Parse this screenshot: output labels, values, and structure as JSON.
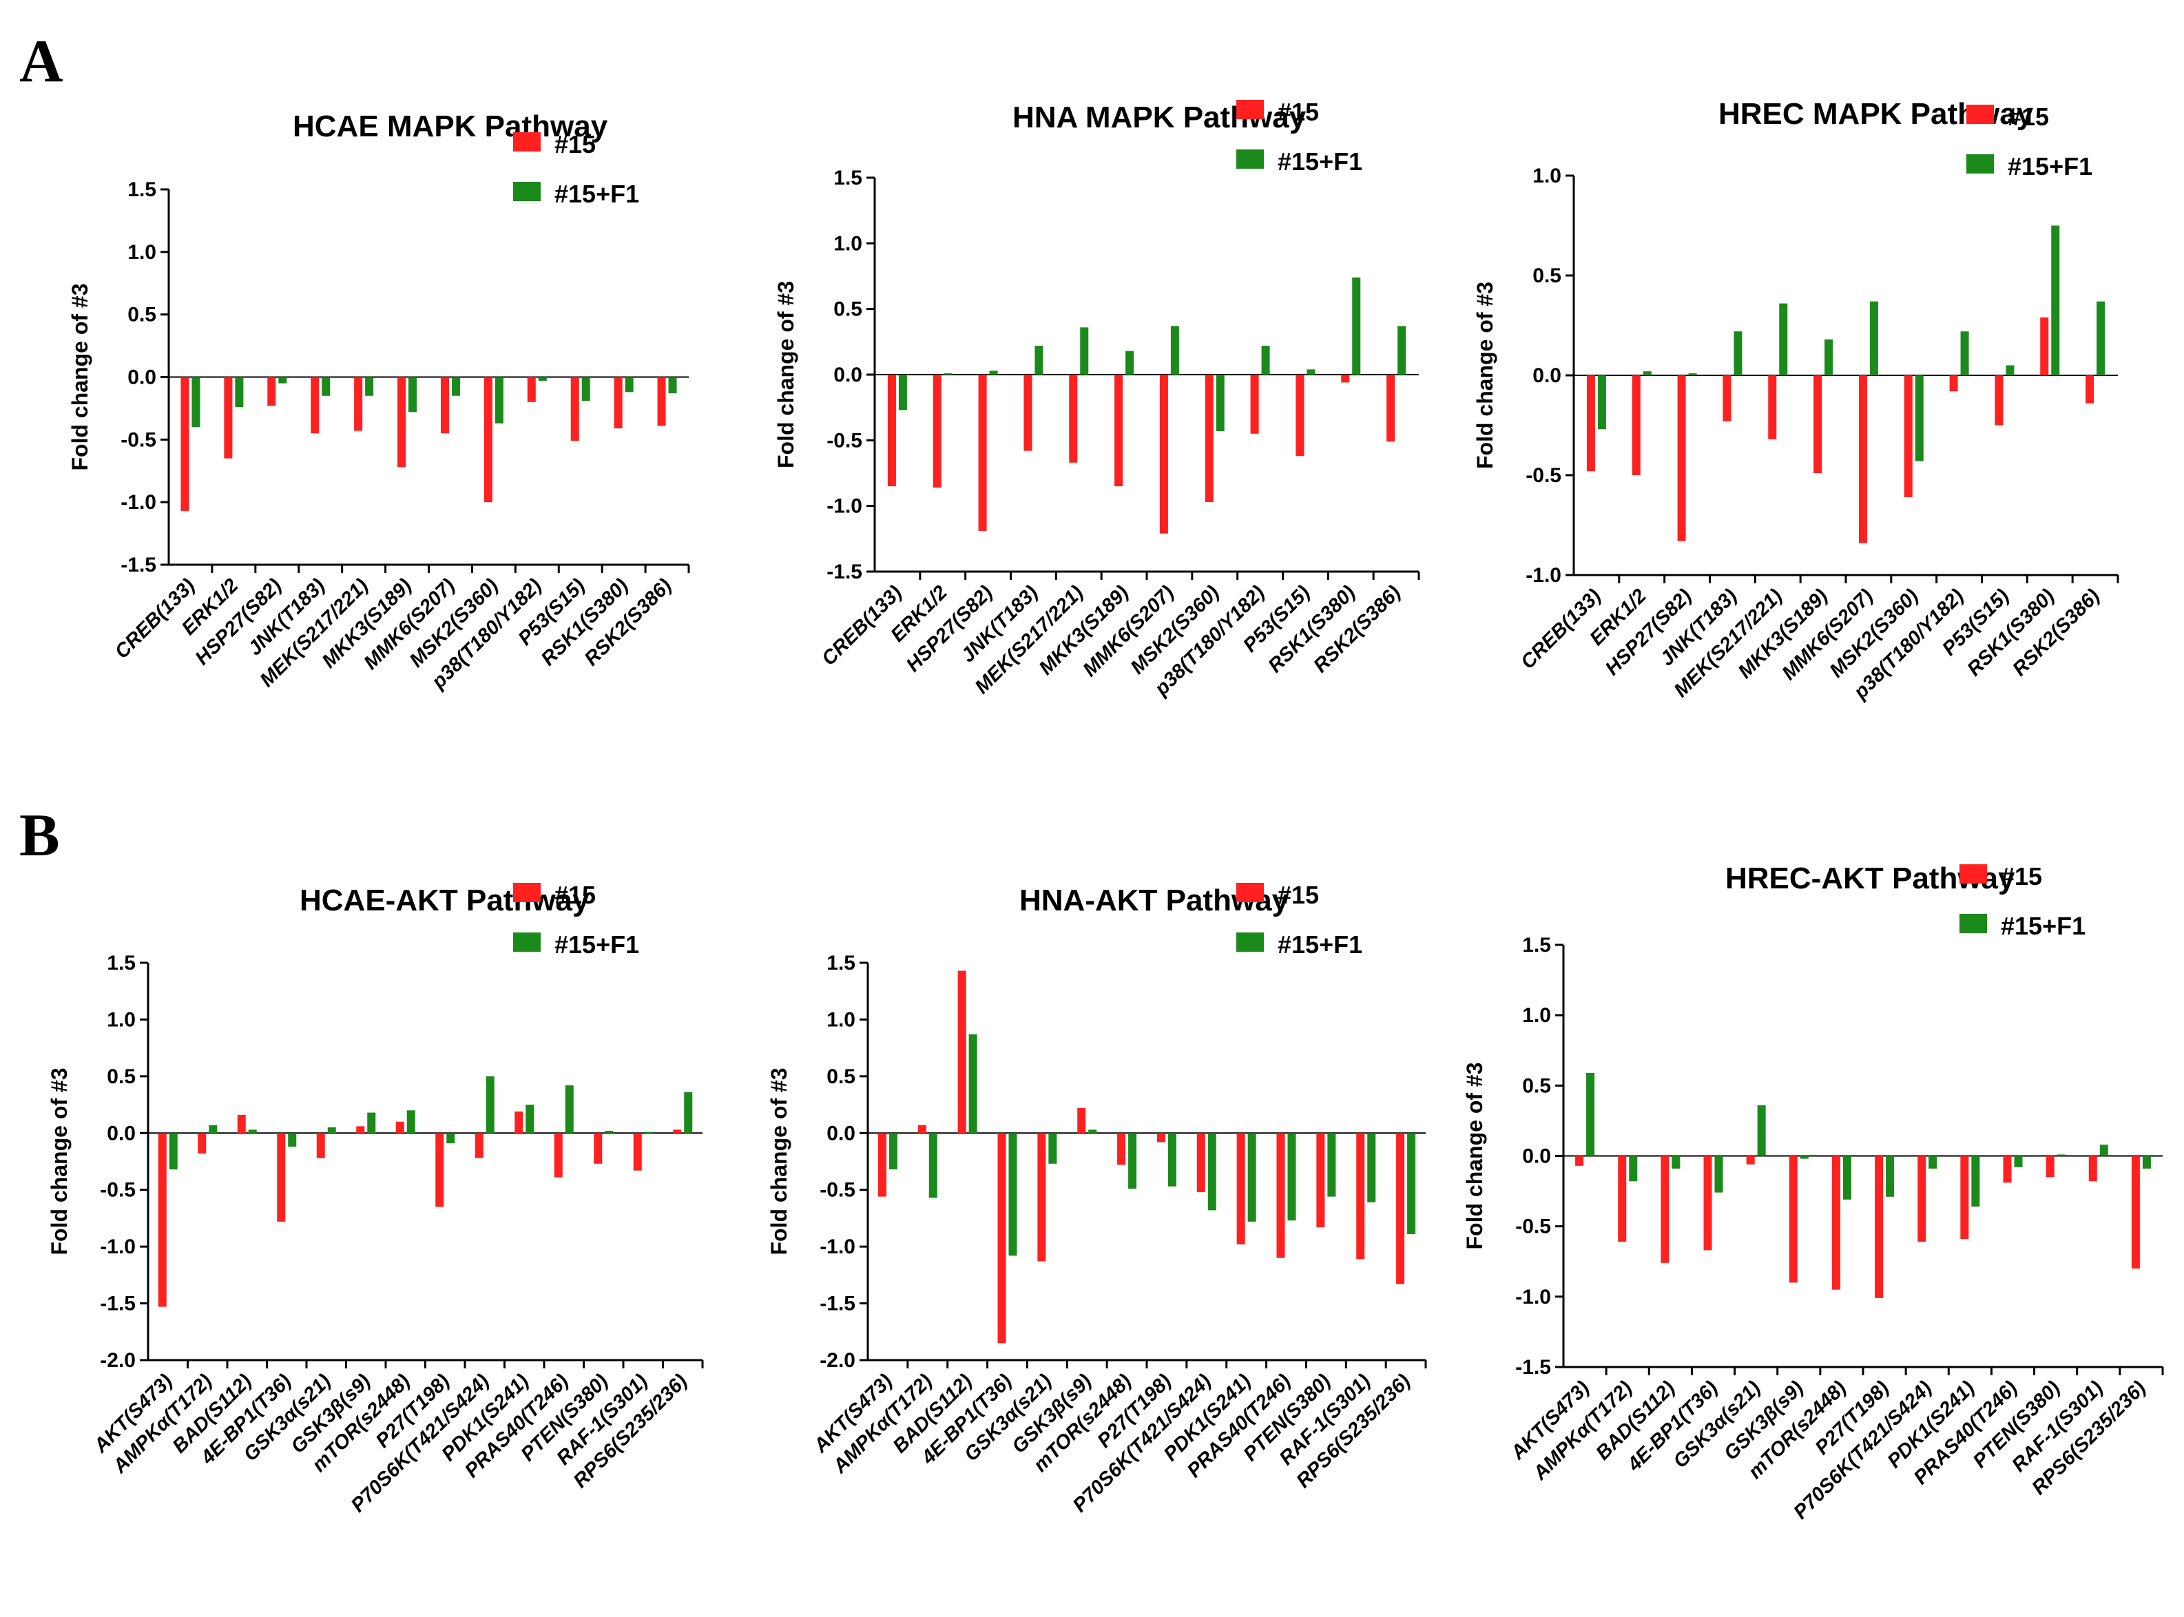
{
  "colors": {
    "s15": "#ff2020",
    "s15f1": "#1a8a1a"
  },
  "panel_labels": {
    "a": "A",
    "b": "B"
  },
  "chart_data": [
    {
      "type": "bar",
      "title": "HCAE MAPK Pathway",
      "ylabel": "Fold change of #3",
      "ylim": [
        -1.5,
        1.5
      ],
      "yticks": [
        "-1.5",
        "-1.0",
        "-0.5",
        "0.0",
        "0.5",
        "1.0",
        "1.5"
      ],
      "categories": [
        "CREB(133)",
        "ERK1/2",
        "HSP27(S82)",
        "JNK(T183)",
        "MEK(S217/221)",
        "MKK3(S189)",
        "MMK6(S207)",
        "MSK2(S360)",
        "p38(T180/Y182)",
        "P53(S15)",
        "RSK1(S380)",
        "RSK2(S386)"
      ],
      "series": [
        {
          "name": "#15",
          "values": [
            -1.07,
            -0.65,
            -0.23,
            -0.45,
            -0.43,
            -0.72,
            -0.45,
            -1.0,
            -0.2,
            -0.51,
            -0.41,
            -0.39
          ]
        },
        {
          "name": "#15+F1",
          "values": [
            -0.4,
            -0.24,
            -0.05,
            -0.15,
            -0.15,
            -0.28,
            -0.15,
            -0.37,
            -0.03,
            -0.19,
            -0.12,
            -0.13
          ]
        }
      ]
    },
    {
      "type": "bar",
      "title": "HNA MAPK Pathway",
      "ylabel": "Fold change of #3",
      "ylim": [
        -1.5,
        1.5
      ],
      "yticks": [
        "-1.5",
        "-1.0",
        "-0.5",
        "0.0",
        "0.5",
        "1.0",
        "1.5"
      ],
      "categories": [
        "CREB(133)",
        "ERK1/2",
        "HSP27(S82)",
        "JNK(T183)",
        "MEK(S217/221)",
        "MKK3(S189)",
        "MMK6(S207)",
        "MSK2(S360)",
        "p38(T180/Y182)",
        "P53(S15)",
        "RSK1(S380)",
        "RSK2(S386)"
      ],
      "series": [
        {
          "name": "#15",
          "values": [
            -0.85,
            -0.86,
            -1.19,
            -0.58,
            -0.67,
            -0.85,
            -1.21,
            -0.97,
            -0.45,
            -0.62,
            -0.06,
            -0.51
          ]
        },
        {
          "name": "#15+F1",
          "values": [
            -0.27,
            0.01,
            0.03,
            0.22,
            0.36,
            0.18,
            0.37,
            -0.43,
            0.22,
            0.04,
            0.74,
            0.37
          ]
        }
      ]
    },
    {
      "type": "bar",
      "title": "HREC MAPK Pathway",
      "ylabel": "Fold change of #3",
      "ylim": [
        -1.0,
        1.0
      ],
      "yticks": [
        "-1.0",
        "-0.5",
        "0.0",
        "0.5",
        "1.0"
      ],
      "categories": [
        "CREB(133)",
        "ERK1/2",
        "HSP27(S82)",
        "JNK(T183)",
        "MEK(S217/221)",
        "MKK3(S189)",
        "MMK6(S207)",
        "MSK2(S360)",
        "p38(T180/Y182)",
        "P53(S15)",
        "RSK1(S380)",
        "RSK2(S386)"
      ],
      "series": [
        {
          "name": "#15",
          "values": [
            -0.48,
            -0.5,
            -0.83,
            -0.23,
            -0.32,
            -0.49,
            -0.84,
            -0.61,
            -0.08,
            -0.25,
            0.29,
            -0.14
          ]
        },
        {
          "name": "#15+F1",
          "values": [
            -0.27,
            0.02,
            0.01,
            0.22,
            0.36,
            0.18,
            0.37,
            -0.43,
            0.22,
            0.05,
            0.75,
            0.37
          ]
        }
      ]
    },
    {
      "type": "bar",
      "title": "HCAE-AKT Pathway",
      "ylabel": "Fold change of #3",
      "ylim": [
        -2.0,
        1.5
      ],
      "yticks": [
        "-2.0",
        "-1.5",
        "-1.0",
        "-0.5",
        "0.0",
        "0.5",
        "1.0",
        "1.5"
      ],
      "categories": [
        "AKT(S473)",
        "AMPKα(T172)",
        "BAD(S112)",
        "4E-BP1(T36)",
        "GSK3α(s21)",
        "GSK3β(s9)",
        "mTOR(s2448)",
        "P27(T198)",
        "P70S6K(T421/S424)",
        "PDK1(S241)",
        "PRAS40(T246)",
        "PTEN(S380)",
        "RAF-1(S301)",
        "RPS6(S235/236)"
      ],
      "series": [
        {
          "name": "#15",
          "values": [
            -1.53,
            -0.18,
            0.16,
            -0.78,
            -0.22,
            0.06,
            0.1,
            -0.65,
            -0.22,
            0.19,
            -0.39,
            -0.27,
            -0.33,
            0.03
          ]
        },
        {
          "name": "#15+F1",
          "values": [
            -0.32,
            0.07,
            0.03,
            -0.12,
            0.05,
            0.18,
            0.2,
            -0.09,
            0.5,
            0.25,
            0.42,
            0.02,
            0.01,
            0.36
          ]
        }
      ]
    },
    {
      "type": "bar",
      "title": "HNA-AKT Pathway",
      "ylabel": "Fold change of #3",
      "ylim": [
        -2.0,
        1.5
      ],
      "yticks": [
        "-2.0",
        "-1.5",
        "-1.0",
        "-0.5",
        "0.0",
        "0.5",
        "1.0",
        "1.5"
      ],
      "categories": [
        "AKT(S473)",
        "AMPKα(T172)",
        "BAD(S112)",
        "4E-BP1(T36)",
        "GSK3α(s21)",
        "GSK3β(s9)",
        "mTOR(s2448)",
        "P27(T198)",
        "P70S6K(T421/S424)",
        "PDK1(S241)",
        "PRAS40(T246)",
        "PTEN(S380)",
        "RAF-1(S301)",
        "RPS6(S235/236)"
      ],
      "series": [
        {
          "name": "#15",
          "values": [
            -0.56,
            0.07,
            1.43,
            -1.85,
            -1.13,
            0.22,
            -0.28,
            -0.08,
            -0.52,
            -0.98,
            -1.1,
            -0.83,
            -1.11,
            -1.33
          ]
        },
        {
          "name": "#15+F1",
          "values": [
            -0.32,
            -0.57,
            0.87,
            -1.08,
            -0.27,
            0.03,
            -0.49,
            -0.47,
            -0.68,
            -0.78,
            -0.77,
            -0.56,
            -0.61,
            -0.89
          ]
        }
      ]
    },
    {
      "type": "bar",
      "title": "HREC-AKT Pathway",
      "ylabel": "Fold change of #3",
      "ylim": [
        -1.5,
        1.5
      ],
      "yticks": [
        "-1.5",
        "-1.0",
        "-0.5",
        "0.0",
        "0.5",
        "1.0",
        "1.5"
      ],
      "categories": [
        "AKT(S473)",
        "AMPKα(T172)",
        "BAD(S112)",
        "4E-BP1(T36)",
        "GSK3α(s21)",
        "GSK3β(s9)",
        "mTOR(s2448)",
        "P27(T198)",
        "P70S6K(T421/S424)",
        "PDK1(S241)",
        "PRAS40(T246)",
        "PTEN(S380)",
        "RAF-1(S301)",
        "RPS6(S235/236)"
      ],
      "series": [
        {
          "name": "#15",
          "values": [
            -0.07,
            -0.61,
            -0.76,
            -0.67,
            -0.06,
            -0.9,
            -0.95,
            -1.01,
            -0.61,
            -0.59,
            -0.19,
            -0.15,
            -0.18,
            -0.8
          ]
        },
        {
          "name": "#15+F1",
          "values": [
            0.59,
            -0.18,
            -0.09,
            -0.26,
            0.36,
            -0.02,
            -0.31,
            -0.29,
            -0.09,
            -0.36,
            -0.08,
            0.01,
            0.08,
            -0.09
          ]
        }
      ]
    }
  ]
}
